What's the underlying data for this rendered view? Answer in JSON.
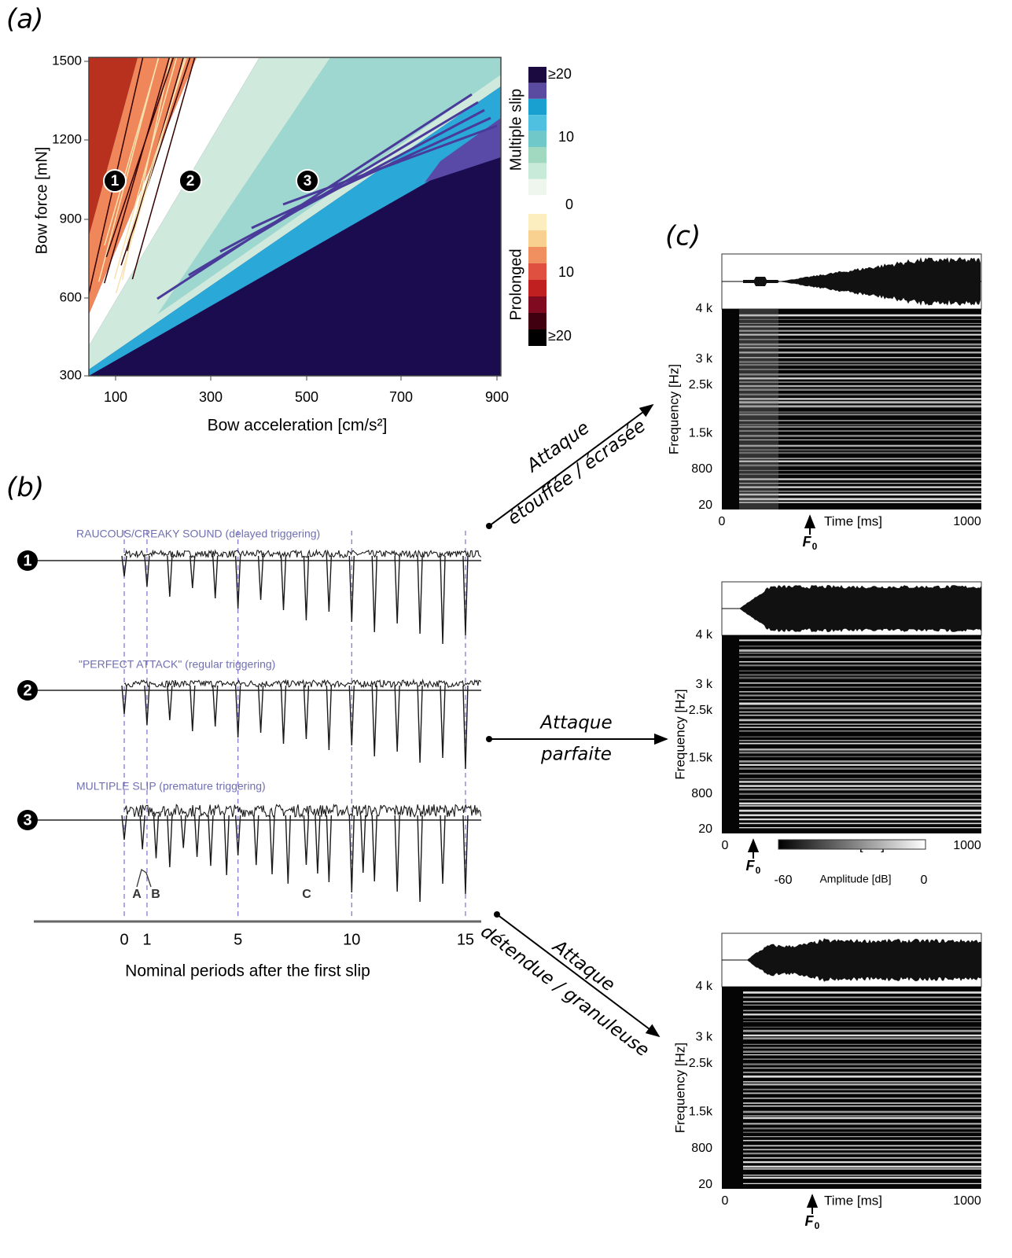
{
  "panel_a": {
    "label": "(a)",
    "y_label": "Bow force [mN]",
    "x_label": "Bow acceleration [cm/s²]",
    "y_ticks": [
      "1500",
      "1200",
      "900",
      "600",
      "300"
    ],
    "x_ticks": [
      "100",
      "300",
      "500",
      "700",
      "900"
    ],
    "regions": [
      "1",
      "2",
      "3"
    ],
    "colorbar": {
      "multiple_label": "Multiple slip",
      "prolonged_label": "Prolonged",
      "ticks": [
        "≥20",
        "10",
        "0",
        "10",
        "≥20"
      ]
    }
  },
  "panel_b": {
    "label": "(b)",
    "traces": [
      {
        "marker": "1",
        "caption": "RAUCOUS/CREAKY SOUND (delayed triggering)"
      },
      {
        "marker": "2",
        "caption": "\"PERFECT ATTACK\" (regular triggering)"
      },
      {
        "marker": "3",
        "caption": "MULTIPLE SLIP (premature triggering)"
      }
    ],
    "slip_labels": [
      "A",
      "B",
      "C"
    ],
    "x_ticks": [
      "0",
      "1",
      "5",
      "10",
      "15"
    ],
    "x_label": "Nominal periods after the first slip"
  },
  "panel_c": {
    "label": "(c)",
    "arrows": [
      [
        "Attaque",
        "étouffée / écrasée"
      ],
      [
        "Attaque",
        "parfaite"
      ],
      [
        "Attaque",
        "détendue / granuleuse"
      ]
    ],
    "y_label": "Frequency [Hz]",
    "freq_ticks": [
      "4 k",
      "3 k",
      "2.5k",
      "1.5k",
      "800",
      "20"
    ],
    "x_label": "Time [ms]",
    "x_ticks": [
      "0",
      "1000"
    ],
    "f0": "F",
    "f0_sub": "0",
    "amplitude": {
      "min": "-60",
      "label": "Amplitude [dB]",
      "max": "0"
    }
  }
}
